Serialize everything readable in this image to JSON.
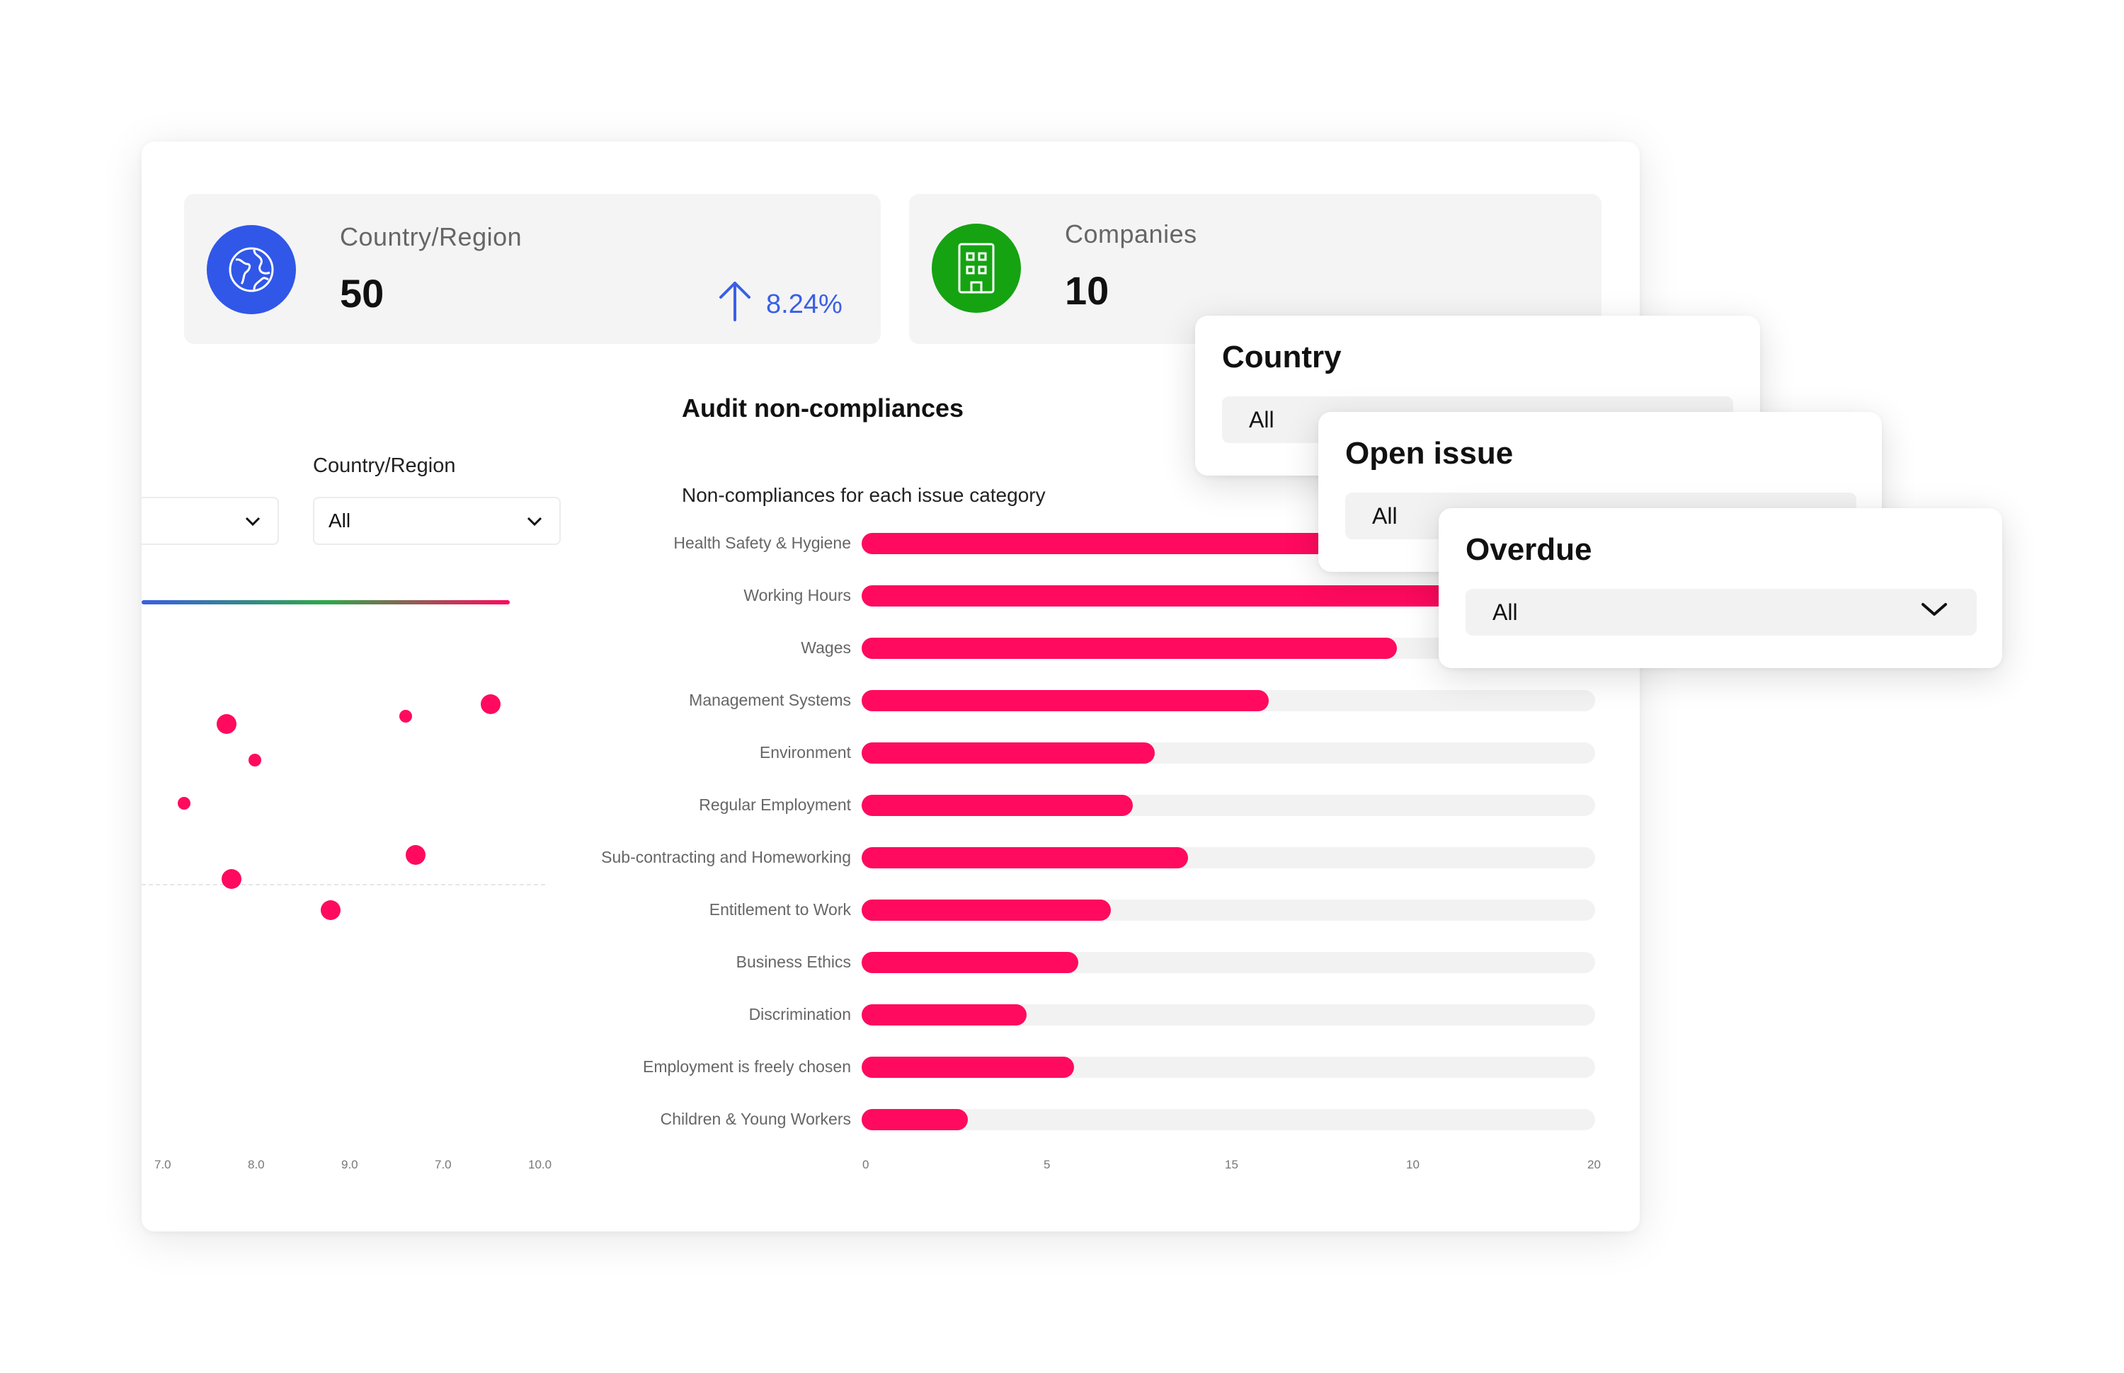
{
  "stats": {
    "country": {
      "label": "Country/Region",
      "value": "50",
      "trend": "8.24%"
    },
    "companies": {
      "label": "Companies",
      "value": "10"
    }
  },
  "filters": {
    "country_region_label": "Country/Region",
    "country_region_value": "All"
  },
  "chart_title": "Audit non-compliances",
  "chart_data": {
    "type": "bar",
    "title": "Non-compliances for each issue category",
    "orientation": "horizontal",
    "categories": [
      "Health Safety & Hygiene",
      "Working Hours",
      "Wages",
      "Management Systems",
      "Environment",
      "Regular Employment",
      "Sub-contracting and Homeworking",
      "Entitlement to Work",
      "Business Ethics",
      "Discrimination",
      "Employment is freely chosen",
      "Children & Young Workers"
    ],
    "values": [
      16.5,
      17.5,
      14.6,
      11.1,
      8.0,
      7.4,
      8.9,
      6.8,
      5.9,
      4.5,
      5.8,
      2.9
    ],
    "x_ticks": [
      "0",
      "5",
      "15",
      "10",
      "20"
    ],
    "xlim": [
      0,
      20
    ],
    "grid": false
  },
  "scatter": {
    "x_ticks": [
      "7.0",
      "8.0",
      "9.0",
      "7.0",
      "10.0"
    ],
    "points": [
      {
        "x": 7.7,
        "y": 0.78,
        "r": "large"
      },
      {
        "x": 9.6,
        "y": 0.8,
        "r": "small"
      },
      {
        "x": 10.5,
        "y": 0.83,
        "r": "large"
      },
      {
        "x": 8.0,
        "y": 0.69,
        "r": "small"
      },
      {
        "x": 7.25,
        "y": 0.58,
        "r": "small"
      },
      {
        "x": 9.7,
        "y": 0.45,
        "r": "large"
      },
      {
        "x": 7.75,
        "y": 0.39,
        "r": "large"
      },
      {
        "x": 8.8,
        "y": 0.31,
        "r": "large"
      }
    ]
  },
  "popups": {
    "country": {
      "title": "Country",
      "value": "All"
    },
    "open_issue": {
      "title": "Open issue",
      "value": "All"
    },
    "overdue": {
      "title": "Overdue",
      "value": "All"
    }
  },
  "colors": {
    "accent": "#ff0a5e",
    "globe_icon_bg": "#3057e8",
    "building_icon_bg": "#15a312",
    "trend": "#3a5fe6"
  }
}
